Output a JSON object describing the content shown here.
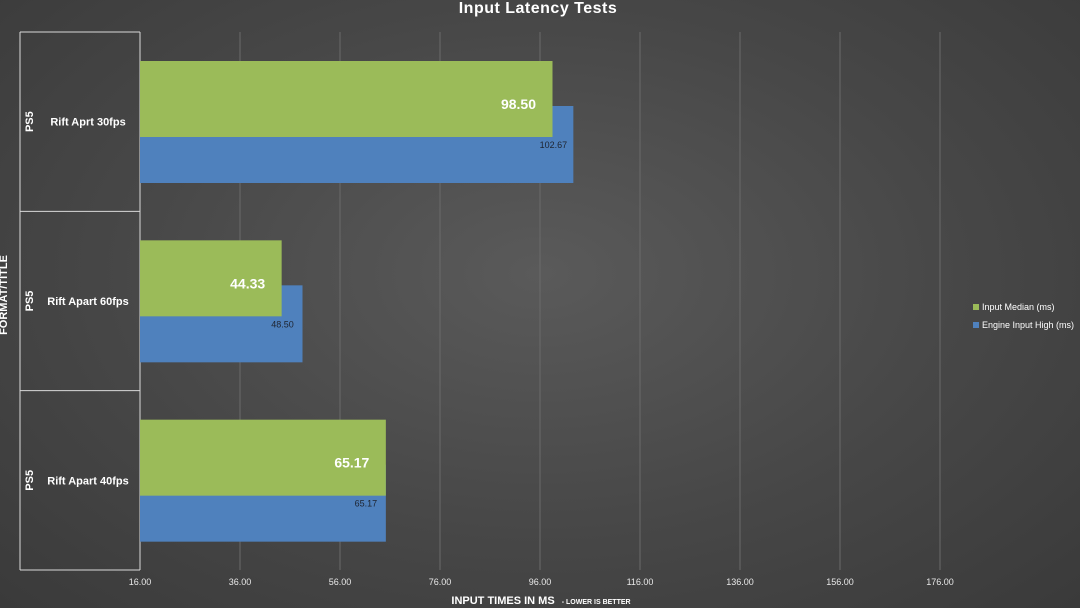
{
  "chart_data": {
    "type": "bar",
    "orientation": "horizontal",
    "title": "Input Latency Tests",
    "xlabel": "INPUT TIMES IN MS",
    "xlabel_sub": "- LOWER IS BETTER",
    "ylabel": "FORMAT/TITLE",
    "xlim": [
      16,
      196
    ],
    "ticks": [
      16,
      36,
      56,
      76,
      96,
      116,
      136,
      156,
      176
    ],
    "tick_labels": [
      "16.00",
      "36.00",
      "56.00",
      "76.00",
      "96.00",
      "116.00",
      "136.00",
      "156.00",
      "176.00"
    ],
    "groups": [
      "PS5",
      "PS5",
      "PS5"
    ],
    "categories": [
      "Rift Aprt 30fps",
      "Rift Apart 60fps",
      "Rift Apart 40fps"
    ],
    "series": [
      {
        "name": "Input Median (ms)",
        "color": "#9bbb59",
        "values": [
          98.5,
          44.33,
          65.17
        ],
        "labels": [
          "98.50",
          "44.33",
          "65.17"
        ]
      },
      {
        "name": "Engine Input High (ms)",
        "color": "#4f81bd",
        "values": [
          102.67,
          48.5,
          65.17
        ],
        "labels": [
          "102.67",
          "48.50",
          "65.17"
        ]
      }
    ],
    "grid": true,
    "legend": "right"
  }
}
